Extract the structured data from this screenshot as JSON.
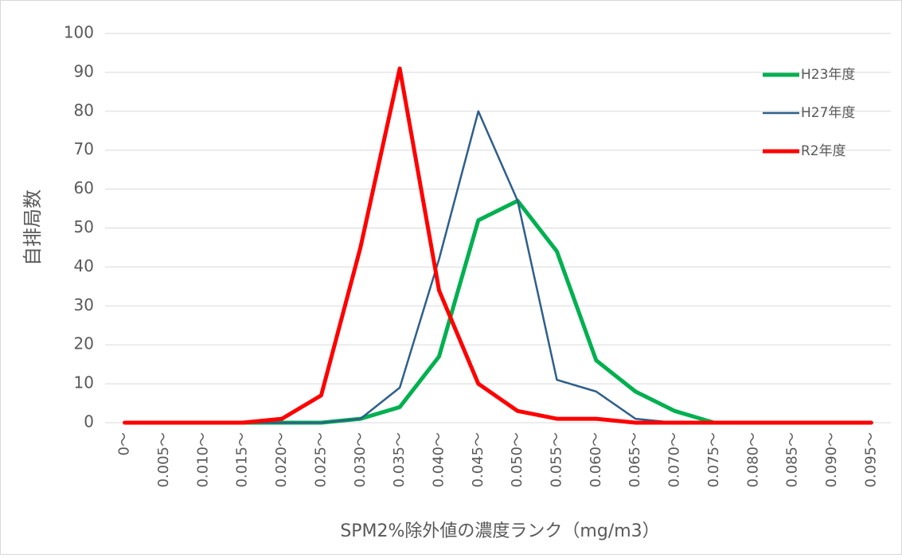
{
  "chart_data": {
    "type": "line",
    "y_label": "自排局数",
    "x_label": "SPM2%除外値の濃度ランク（mg/m3）",
    "categories": [
      "0～",
      "0.005～",
      "0.010～",
      "0.015～",
      "0.020～",
      "0.025～",
      "0.030～",
      "0.035～",
      "0.040～",
      "0.045～",
      "0.050～",
      "0.055～",
      "0.060～",
      "0.065～",
      "0.070～",
      "0.075～",
      "0.080～",
      "0.085～",
      "0.090～",
      "0.095～"
    ],
    "series": [
      {
        "name": "H23年度",
        "color": "#00b050",
        "width": 5,
        "values": [
          0,
          0,
          0,
          0,
          0,
          0,
          1,
          4,
          17,
          52,
          57,
          44,
          16,
          8,
          3,
          0,
          0,
          0,
          0,
          0
        ]
      },
      {
        "name": "H27年度",
        "color": "#2e5f8a",
        "width": 2.5,
        "values": [
          0,
          0,
          0,
          0,
          0,
          0,
          1,
          9,
          42,
          80,
          57,
          11,
          8,
          1,
          0,
          0,
          0,
          0,
          0,
          0
        ]
      },
      {
        "name": "R2年度",
        "color": "#ff0000",
        "width": 5,
        "values": [
          0,
          0,
          0,
          0,
          1,
          7,
          45,
          91,
          34,
          10,
          3,
          1,
          1,
          0,
          0,
          0,
          0,
          0,
          0,
          0
        ]
      }
    ],
    "ylim": [
      0,
      100
    ],
    "yticks": [
      0,
      10,
      20,
      30,
      40,
      50,
      60,
      70,
      80,
      90,
      100
    ],
    "grid": true,
    "legend": "upper right"
  }
}
